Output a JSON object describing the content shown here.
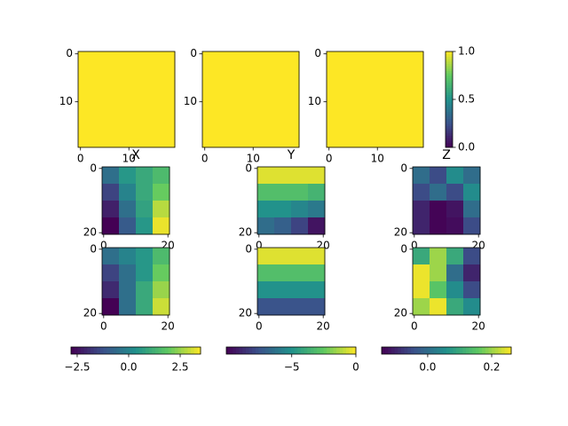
{
  "chart_data": [
    {
      "type": "heatmap",
      "values": [
        [
          1,
          1
        ],
        [
          1,
          1
        ]
      ],
      "xlim": [
        -0.5,
        19.5
      ],
      "ylim": [
        19.5,
        -0.5
      ],
      "xticks": [
        0,
        10
      ],
      "yticks": [
        0,
        10
      ]
    },
    {
      "type": "heatmap",
      "values": [
        [
          1,
          1
        ],
        [
          1,
          1
        ]
      ],
      "xlim": [
        -0.5,
        19.5
      ],
      "ylim": [
        19.5,
        -0.5
      ],
      "xticks": [
        0,
        10
      ],
      "yticks": [
        0,
        10
      ]
    },
    {
      "type": "heatmap",
      "values": [
        [
          1,
          1
        ],
        [
          1,
          1
        ]
      ],
      "xlim": [
        -0.5,
        19.5
      ],
      "ylim": [
        19.5,
        -0.5
      ],
      "xticks": [
        0,
        10
      ],
      "yticks": [
        0,
        10
      ],
      "colorbar": {
        "orientation": "vertical",
        "clim": [
          0,
          1
        ],
        "ticks": [
          {
            "value": 0,
            "label": "0.0"
          },
          {
            "value": 0.5,
            "label": "0.5"
          },
          {
            "value": 1,
            "label": "1.0"
          }
        ]
      }
    },
    {
      "type": "heatmap",
      "title": "X",
      "values": [
        [
          -0.5,
          0.5,
          1.0,
          1.5
        ],
        [
          -1.5,
          0,
          1,
          2
        ],
        [
          -2.2,
          -0.5,
          0.8,
          2.8
        ],
        [
          -2.8,
          -1,
          0.5,
          3.3
        ]
      ],
      "xlim": [
        -0.5,
        20.5
      ],
      "ylim": [
        20.5,
        -0.5
      ],
      "xticks": [
        0,
        20
      ],
      "yticks": [
        0,
        20
      ]
    },
    {
      "type": "heatmap",
      "title": "Y",
      "values": [
        [
          -0.5,
          -0.5,
          -0.5,
          -0.5
        ],
        [
          -3,
          -3,
          -3,
          -3.5
        ],
        [
          -5,
          -5,
          -5.5,
          -6
        ],
        [
          -6.5,
          -7,
          -8,
          -9.5
        ]
      ],
      "xlim": [
        -0.5,
        20.5
      ],
      "ylim": [
        20.5,
        -0.5
      ],
      "xticks": [
        0,
        20
      ],
      "yticks": [
        0,
        20
      ]
    },
    {
      "type": "heatmap",
      "title": "Z",
      "values": [
        [
          0,
          -0.05,
          0.05,
          0
        ],
        [
          -0.05,
          0,
          -0.05,
          0.05
        ],
        [
          -0.1,
          -0.14,
          -0.12,
          0
        ],
        [
          -0.1,
          -0.14,
          -0.13,
          -0.05
        ]
      ],
      "xlim": [
        -0.5,
        20.5
      ],
      "ylim": [
        20.5,
        -0.5
      ],
      "xticks": [
        0,
        20
      ],
      "yticks": [
        0,
        20
      ]
    },
    {
      "type": "heatmap",
      "values": [
        [
          -0.5,
          0,
          0.5,
          1.5
        ],
        [
          -1.5,
          -0.5,
          0.5,
          2
        ],
        [
          -2,
          -0.5,
          1,
          2.5
        ],
        [
          -2.8,
          -0.5,
          1,
          3
        ]
      ],
      "xlim": [
        -0.5,
        20.5
      ],
      "ylim": [
        20.5,
        -0.5
      ],
      "xticks": [
        0,
        20
      ],
      "yticks": [
        0,
        20
      ],
      "colorbar": {
        "orientation": "horizontal",
        "clim": [
          -2.8,
          3.49
        ],
        "ticks": [
          {
            "value": -2.5,
            "label": "−2.5"
          },
          {
            "value": 0,
            "label": "0.0"
          },
          2.5
        ]
      }
    },
    {
      "type": "heatmap",
      "values": [
        [
          -0.5,
          -0.5,
          -0.5,
          -0.5
        ],
        [
          -3,
          -3,
          -3,
          -3
        ],
        [
          -5,
          -5,
          -5,
          -5
        ],
        [
          -7.5,
          -7.5,
          -7.5,
          -7.5
        ]
      ],
      "xlim": [
        -0.5,
        20.5
      ],
      "ylim": [
        20.5,
        -0.5
      ],
      "xticks": [
        0,
        20
      ],
      "yticks": [
        0,
        20
      ],
      "colorbar": {
        "orientation": "horizontal",
        "clim": [
          -10.1,
          0
        ],
        "ticks": [
          {
            "value": -5,
            "label": "−5"
          },
          0
        ]
      }
    },
    {
      "type": "heatmap",
      "values": [
        [
          0.1,
          0.2,
          0.1,
          -0.05
        ],
        [
          0.25,
          0.2,
          0,
          -0.1
        ],
        [
          0.25,
          0.15,
          0.05,
          -0.05
        ],
        [
          0.2,
          0.25,
          0.1,
          0.05
        ]
      ],
      "xlim": [
        -0.5,
        20.5
      ],
      "ylim": [
        20.5,
        -0.5
      ],
      "xticks": [
        0,
        20
      ],
      "yticks": [
        0,
        20
      ],
      "colorbar": {
        "orientation": "horizontal",
        "clim": [
          -0.144,
          0.261
        ],
        "ticks": [
          {
            "value": 0,
            "label": "0.0"
          },
          0.2
        ]
      }
    }
  ]
}
